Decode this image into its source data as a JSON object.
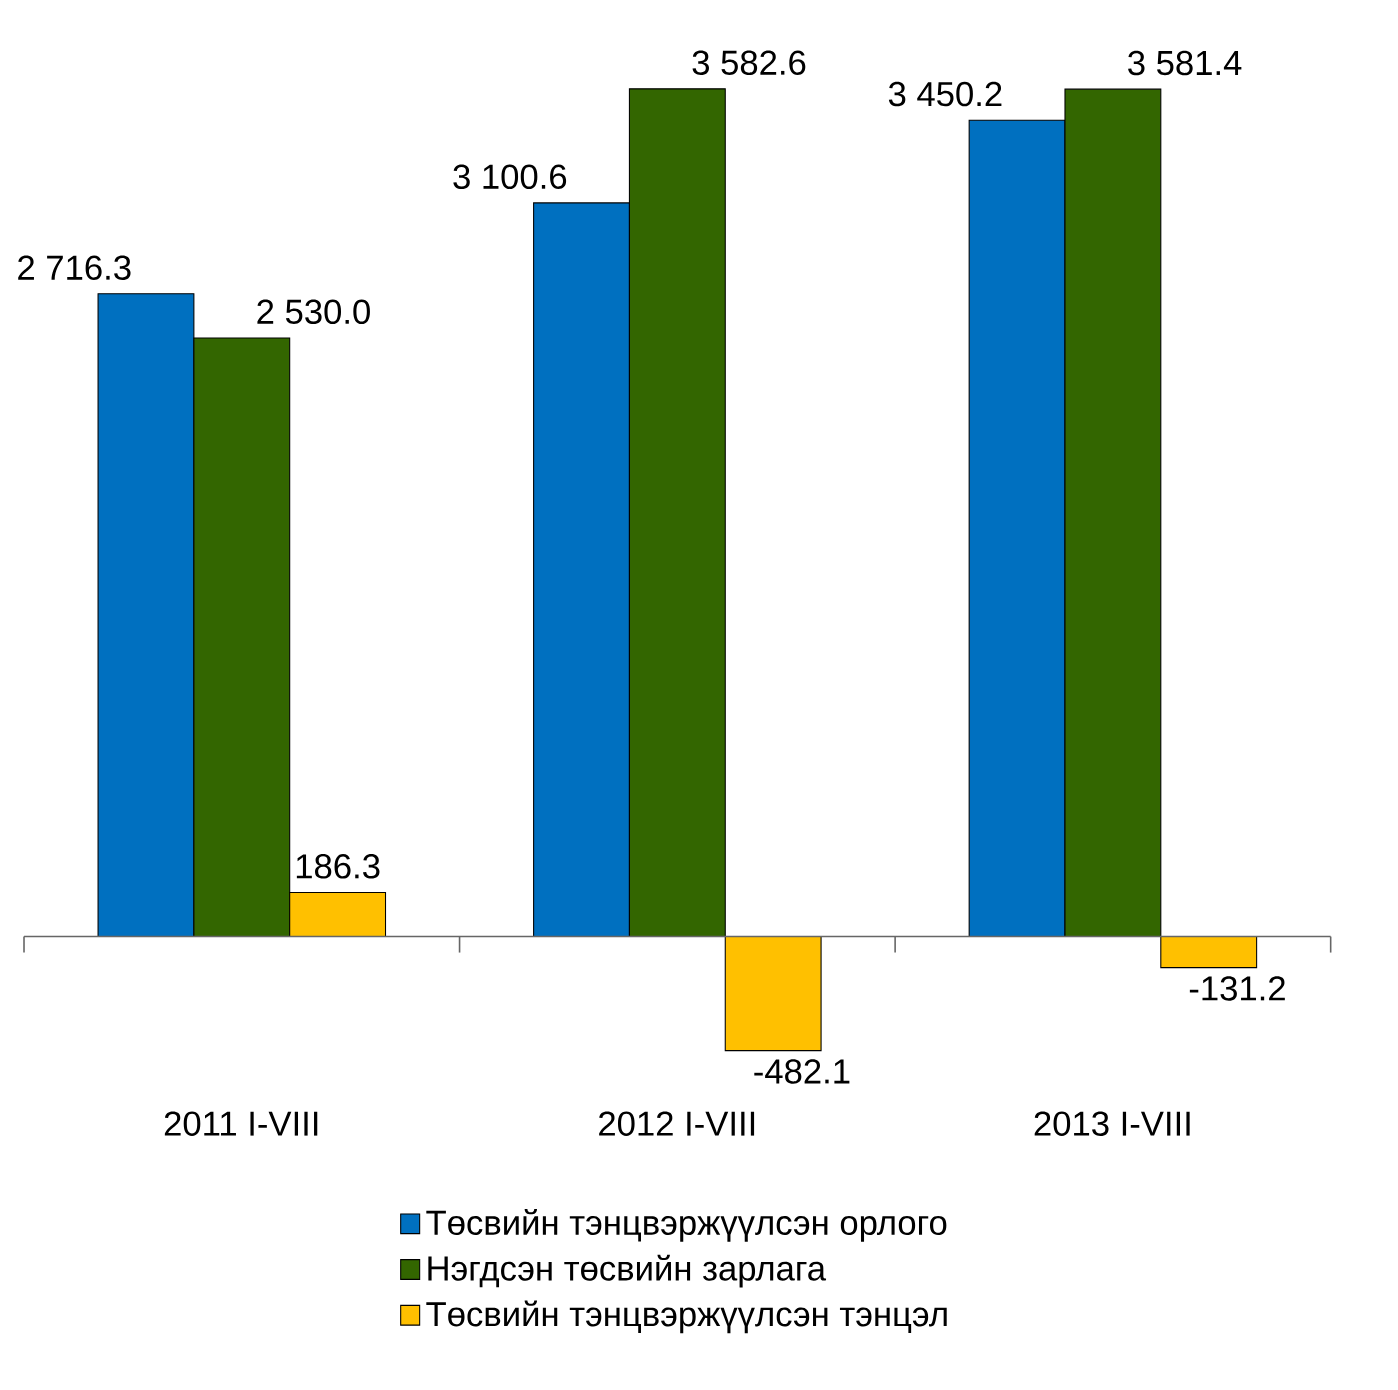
{
  "chart_data": {
    "type": "bar",
    "categories": [
      "2011 I-VIII",
      "2012 I-VIII",
      "2013 I-VIII"
    ],
    "series": [
      {
        "name": "Төсвийн тэнцвэржүүлсэн орлого",
        "color": "#0070c0",
        "values": [
          2716.3,
          3100.6,
          3450.2
        ],
        "value_labels": [
          "2 716.3",
          "3 100.6",
          "3 450.2"
        ]
      },
      {
        "name": "Нэгдсэн төсвийн зарлага",
        "color": "#336600",
        "values": [
          2530.0,
          3582.6,
          3581.4
        ],
        "value_labels": [
          "2 530.0",
          "3 582.6",
          "3 581.4"
        ]
      },
      {
        "name": "Төсвийн тэнцвэржүүлсэн тэнцэл",
        "color": "#ffc000",
        "values": [
          186.3,
          -482.1,
          -131.2
        ],
        "value_labels": [
          "186.3",
          "-482.1",
          "-131.2"
        ]
      }
    ],
    "legend": "bottom"
  }
}
